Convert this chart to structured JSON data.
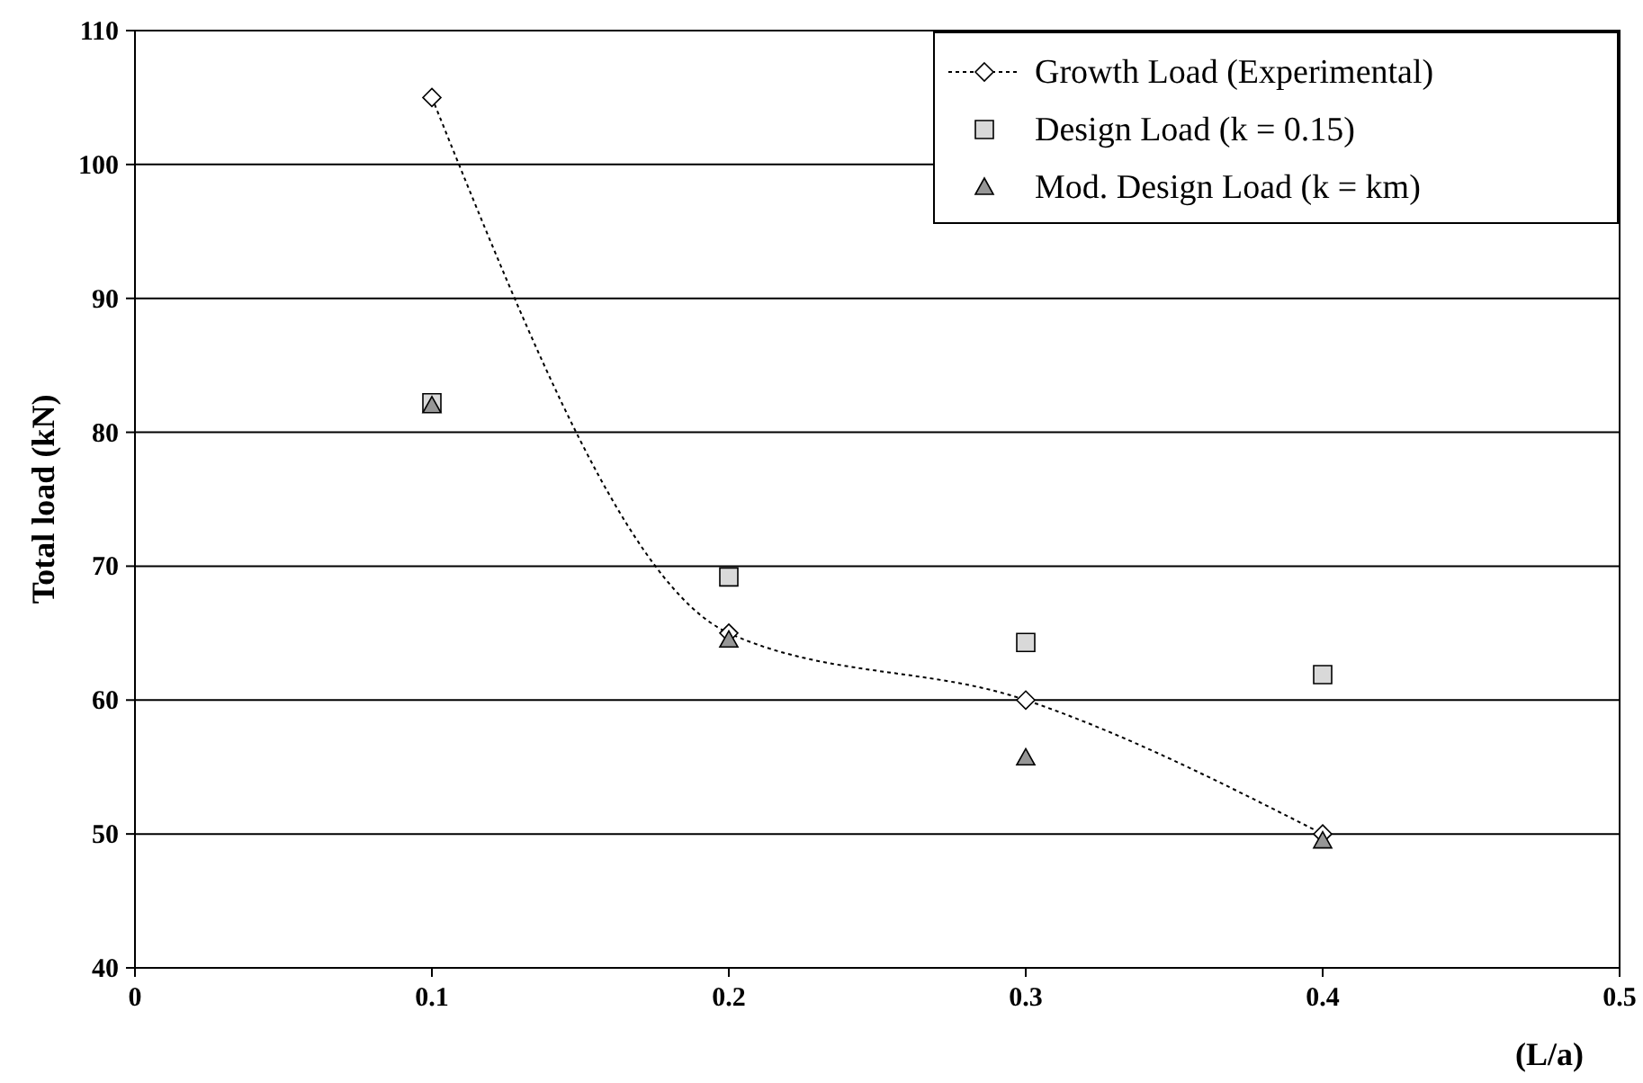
{
  "chart_data": {
    "type": "scatter",
    "xlabel": "(L/a)",
    "ylabel": "Total load (kN)",
    "xlim": [
      0,
      0.5
    ],
    "ylim": [
      40,
      110
    ],
    "xticks": [
      0,
      0.1,
      0.2,
      0.3,
      0.4,
      0.5
    ],
    "yticks": [
      40,
      50,
      60,
      70,
      80,
      90,
      100,
      110
    ],
    "grid": "y",
    "legend": "top right",
    "series": [
      {
        "name": "Growth Load (Experimental)",
        "type": "line",
        "color": "#ffffff",
        "marker": "diamond",
        "line_style": "dotted",
        "x": [
          0.1,
          0.2,
          0.3,
          0.4
        ],
        "values": [
          105,
          65,
          60,
          50
        ]
      },
      {
        "name": "Design Load (k = 0.15)",
        "color": "#d9d9d9",
        "marker": "square",
        "x": [
          0.1,
          0.2,
          0.3,
          0.4
        ],
        "values": [
          82.2,
          69.2,
          64.3,
          61.9
        ]
      },
      {
        "name": "Mod. Design Load (k = km)",
        "color": "#969696",
        "marker": "triangle",
        "x": [
          0.1,
          0.2,
          0.3,
          0.4
        ],
        "values": [
          82,
          64.5,
          55.7,
          49.5
        ]
      }
    ]
  }
}
